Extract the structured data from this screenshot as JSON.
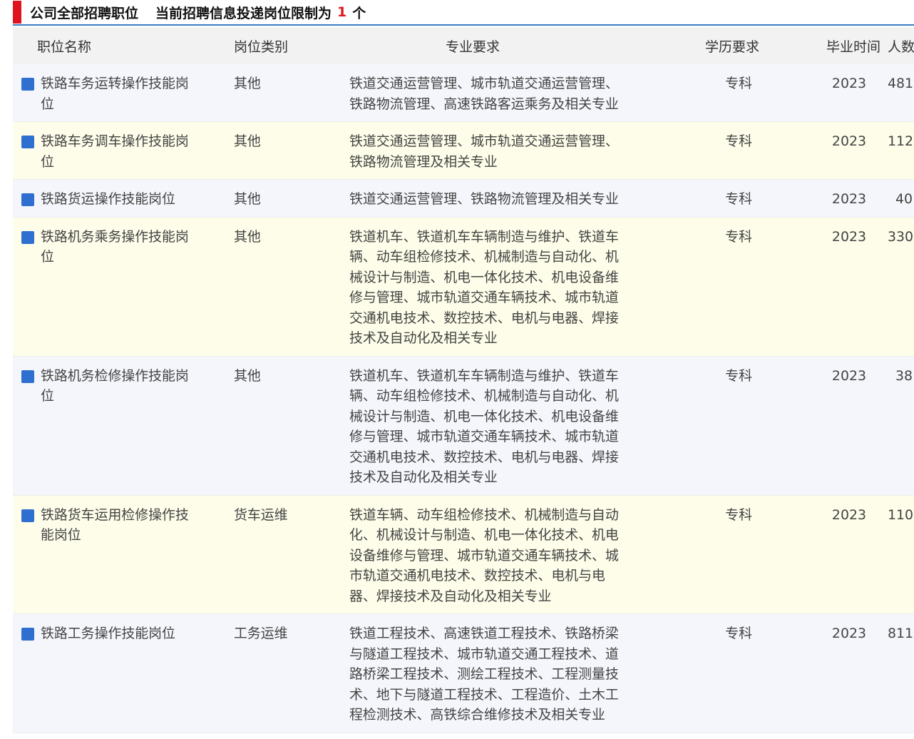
{
  "header": {
    "title": "公司全部招聘职位",
    "limit_text": "当前招聘信息投递岗位限制为",
    "limit_count": "1",
    "limit_unit": "个"
  },
  "columns": [
    "职位名称",
    "岗位类别",
    "专业要求",
    "学历要求",
    "毕业时间",
    "人数"
  ],
  "rows": [
    {
      "name": "铁路车务运转操作技能岗位",
      "category": "其他",
      "major": "铁道交通运营管理、城市轨道交通运营管理、铁路物流管理、高速铁路客运乘务及相关专业",
      "education": "专科",
      "year": "2023",
      "count": "481"
    },
    {
      "name": "铁路车务调车操作技能岗位",
      "category": "其他",
      "major": "铁道交通运营管理、城市轨道交通运营管理、铁路物流管理及相关专业",
      "education": "专科",
      "year": "2023",
      "count": "112"
    },
    {
      "name": "铁路货运操作技能岗位",
      "category": "其他",
      "major": "铁道交通运营管理、铁路物流管理及相关专业",
      "education": "专科",
      "year": "2023",
      "count": "40"
    },
    {
      "name": "铁路机务乘务操作技能岗位",
      "category": "其他",
      "major": "铁道机车、铁道机车车辆制造与维护、铁道车辆、动车组检修技术、机械制造与自动化、机械设计与制造、机电一体化技术、机电设备维修与管理、城市轨道交通车辆技术、城市轨道交通机电技术、数控技术、电机与电器、焊接技术及自动化及相关专业",
      "education": "专科",
      "year": "2023",
      "count": "330"
    },
    {
      "name": "铁路机务检修操作技能岗位",
      "category": "其他",
      "major": "铁道机车、铁道机车车辆制造与维护、铁道车辆、动车组检修技术、机械制造与自动化、机械设计与制造、机电一体化技术、机电设备维修与管理、城市轨道交通车辆技术、城市轨道交通机电技术、数控技术、电机与电器、焊接技术及自动化及相关专业",
      "education": "专科",
      "year": "2023",
      "count": "38"
    },
    {
      "name": "铁路货车运用检修操作技能岗位",
      "category": "货车运维",
      "major": "铁道车辆、动车组检修技术、机械制造与自动化、机械设计与制造、机电一体化技术、机电设备维修与管理、城市轨道交通车辆技术、城市轨道交通机电技术、数控技术、电机与电器、焊接技术及自动化及相关专业",
      "education": "专科",
      "year": "2023",
      "count": "110"
    },
    {
      "name": "铁路工务操作技能岗位",
      "category": "工务运维",
      "major": "铁道工程技术、高速铁道工程技术、铁路桥梁与隧道工程技术、城市轨道交通工程技术、道路桥梁工程技术、测绘工程技术、工程测量技术、地下与隧道工程技术、工程造价、土木工程检测技术、高铁综合维修技术及相关专业",
      "education": "专科",
      "year": "2023",
      "count": "811"
    }
  ]
}
